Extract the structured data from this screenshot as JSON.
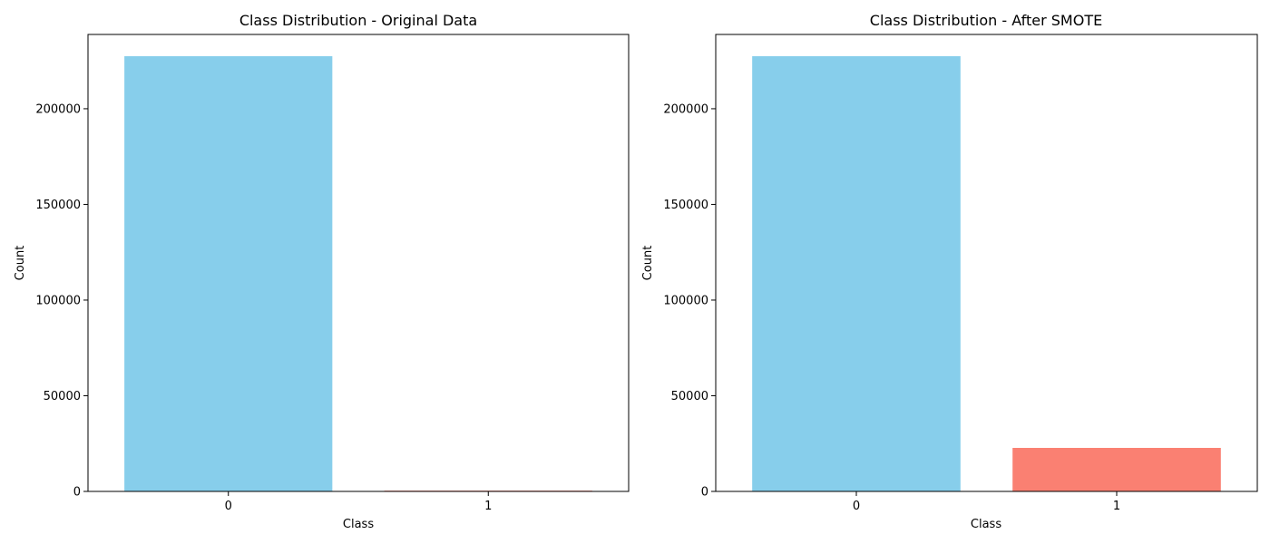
{
  "chart_data": [
    {
      "type": "bar",
      "title": "Class Distribution - Original Data",
      "xlabel": "Class",
      "ylabel": "Count",
      "categories": [
        "0",
        "1"
      ],
      "values": [
        227451,
        394
      ],
      "colors": [
        "#87ceeb",
        "#fa8072"
      ],
      "ylim": [
        0,
        238823
      ],
      "yticks": [
        0,
        50000,
        100000,
        150000,
        200000
      ],
      "grid": false
    },
    {
      "type": "bar",
      "title": "Class Distribution - After SMOTE",
      "xlabel": "Class",
      "ylabel": "Count",
      "categories": [
        "0",
        "1"
      ],
      "values": [
        227451,
        22745
      ],
      "colors": [
        "#87ceeb",
        "#fa8072"
      ],
      "ylim": [
        0,
        238823
      ],
      "yticks": [
        0,
        50000,
        100000,
        150000,
        200000
      ],
      "grid": false
    }
  ]
}
